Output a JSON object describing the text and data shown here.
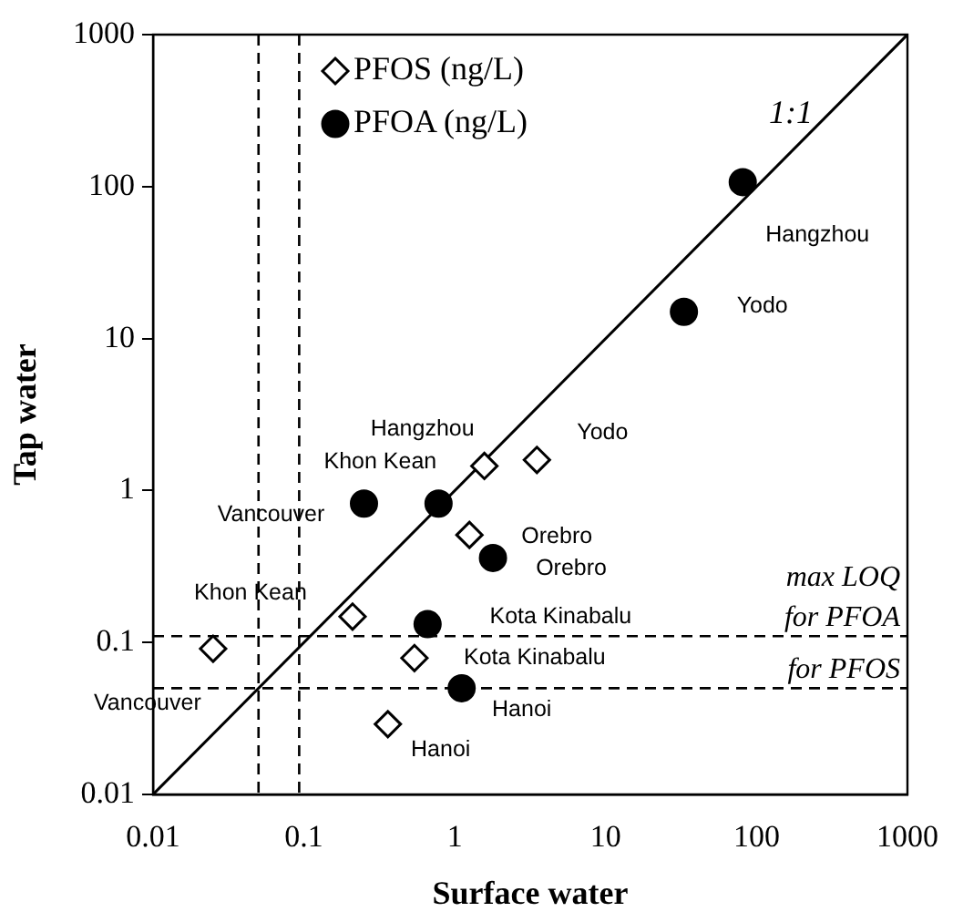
{
  "chart_data": {
    "type": "scatter",
    "xlabel": "Surface water",
    "ylabel": "Tap water",
    "log": "xy",
    "grid": false,
    "legend": "top",
    "xlim": [
      0.01,
      1000
    ],
    "ylim": [
      0.01,
      1000
    ],
    "xticks": [
      0.01,
      0.1,
      1,
      10,
      100,
      1000
    ],
    "yticks": [
      0.01,
      0.1,
      1,
      10,
      100,
      1000
    ],
    "series": [
      {
        "name": "PFOS (ng/L)",
        "color": "#000000",
        "marker": "diamond",
        "x": [
          0.025,
          0.21,
          0.54,
          0.36,
          1.25,
          1.57,
          3.5
        ],
        "values": [
          0.091,
          0.148,
          0.079,
          0.029,
          0.51,
          1.45,
          1.59
        ]
      },
      {
        "name": "PFOA (ng/L)",
        "color": "#000000",
        "marker": "circle",
        "x": [
          0.25,
          0.78,
          1.79,
          0.66,
          1.11,
          81,
          33
        ],
        "values": [
          0.82,
          0.82,
          0.36,
          0.132,
          0.05,
          107,
          15
        ]
      },
      {
        "name": "1:1",
        "type": "line",
        "color": "#000000",
        "marker": "none",
        "line_style": "solid",
        "x": [
          0.01,
          1000
        ],
        "values": [
          0.01,
          1000
        ]
      }
    ],
    "ref_lines": [
      {
        "axis": "x",
        "value": 0.05,
        "line_style": "dashed"
      },
      {
        "axis": "x",
        "value": 0.093,
        "line_style": "dashed"
      },
      {
        "axis": "y",
        "value": 0.11,
        "label": "for PFOA",
        "line_style": "dashed"
      },
      {
        "axis": "y",
        "value": 0.05,
        "label": "for PFOS",
        "line_style": "dashed"
      }
    ],
    "annotations": [
      {
        "text": "Vancouver",
        "x": 0.025,
        "y": 0.091
      },
      {
        "text": "Khon Kean",
        "x": 0.21,
        "y": 0.148
      },
      {
        "text": "Kota Kinabalu",
        "x": 0.54,
        "y": 0.079
      },
      {
        "text": "Hanoi",
        "x": 0.36,
        "y": 0.029
      },
      {
        "text": "Orebro",
        "x": 1.25,
        "y": 0.51
      },
      {
        "text": "Hangzhou",
        "x": 1.57,
        "y": 1.45
      },
      {
        "text": "Yodo",
        "x": 3.5,
        "y": 1.59
      },
      {
        "text": "Vancouver",
        "x": 0.25,
        "y": 0.82
      },
      {
        "text": "Khon Kean",
        "x": 0.78,
        "y": 0.82
      },
      {
        "text": "Orebro",
        "x": 1.79,
        "y": 0.36
      },
      {
        "text": "Kota Kinabalu",
        "x": 0.66,
        "y": 0.132
      },
      {
        "text": "Hanoi",
        "x": 1.11,
        "y": 0.05
      },
      {
        "text": "Hangzhou",
        "x": 81,
        "y": 107
      },
      {
        "text": "Yodo",
        "x": 33,
        "y": 15
      },
      "max LOQ"
    ]
  }
}
